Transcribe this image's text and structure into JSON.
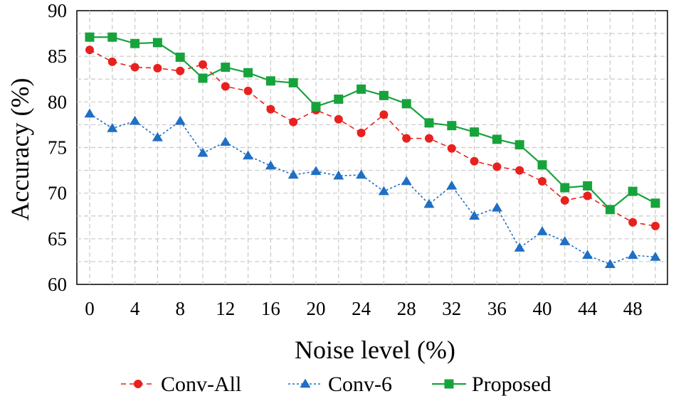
{
  "chart_data": {
    "type": "line",
    "title": "",
    "xlabel": "Noise level (%)",
    "ylabel": "Accuracy (%)",
    "xlim": [
      0,
      50
    ],
    "ylim": [
      60,
      90
    ],
    "x_ticks": [
      "0",
      "4",
      "8",
      "12",
      "16",
      "20",
      "24",
      "28",
      "32",
      "36",
      "40",
      "44",
      "48"
    ],
    "y_ticks": [
      "60",
      "65",
      "70",
      "75",
      "80",
      "85",
      "90"
    ],
    "grid": true,
    "legend_position": "bottom",
    "x": [
      0,
      2,
      4,
      6,
      8,
      10,
      12,
      14,
      16,
      18,
      20,
      22,
      24,
      26,
      28,
      30,
      32,
      34,
      36,
      38,
      40,
      42,
      44,
      46,
      48,
      50
    ],
    "series": [
      {
        "name": "Conv-All",
        "color": "#e8211e",
        "line_style": "dashed",
        "marker": "circle",
        "values": [
          85.7,
          84.4,
          83.8,
          83.7,
          83.4,
          84.1,
          81.7,
          81.2,
          79.2,
          77.8,
          79.1,
          78.1,
          76.6,
          78.6,
          76.0,
          76.0,
          74.9,
          73.5,
          72.9,
          72.5,
          71.3,
          69.2,
          69.7,
          68.2,
          66.8,
          66.4
        ]
      },
      {
        "name": "Conv-6",
        "color": "#1f6fc4",
        "line_style": "dotted",
        "marker": "triangle",
        "values": [
          78.7,
          77.1,
          77.9,
          76.1,
          77.9,
          74.4,
          75.6,
          74.1,
          73.0,
          72.0,
          72.4,
          71.9,
          72.0,
          70.2,
          71.3,
          68.8,
          70.8,
          67.5,
          68.4,
          64.0,
          65.8,
          64.7,
          63.2,
          62.2,
          63.2,
          63.0
        ]
      },
      {
        "name": "Proposed",
        "color": "#17a33b",
        "line_style": "solid",
        "marker": "square",
        "values": [
          87.1,
          87.1,
          86.4,
          86.5,
          84.9,
          82.6,
          83.8,
          83.2,
          82.3,
          82.1,
          79.5,
          80.3,
          81.4,
          80.7,
          79.8,
          77.7,
          77.4,
          76.7,
          75.9,
          75.3,
          73.1,
          70.6,
          70.8,
          68.2,
          70.2,
          68.9
        ]
      }
    ]
  }
}
